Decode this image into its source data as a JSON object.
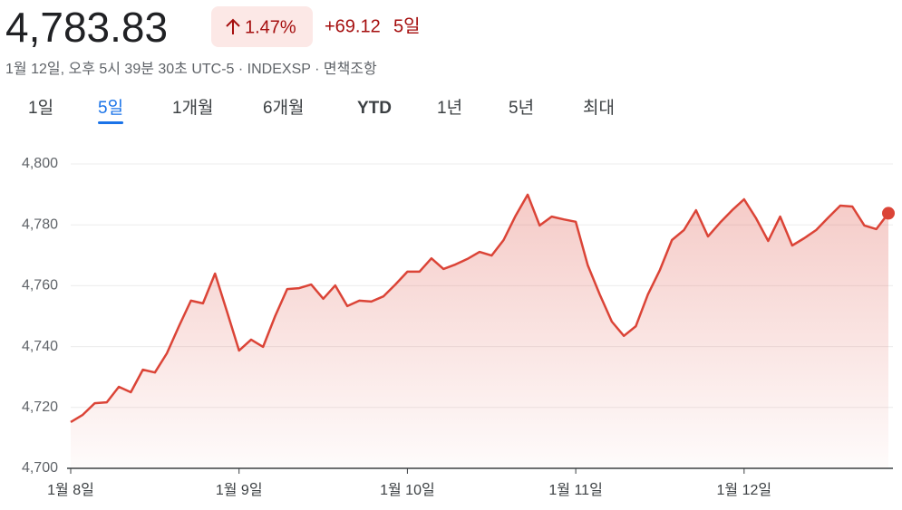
{
  "header": {
    "price": "4,783.83",
    "change_percent": "1.47%",
    "change": "+69.12",
    "period": "5일",
    "subtitle": "1월 12일, 오후 5시 39분 30초 UTC-5 · INDEXSP · 면책조항"
  },
  "tabs": {
    "items": [
      "1일",
      "5일",
      "1개월",
      "6개월",
      "YTD",
      "1년",
      "5년",
      "최대"
    ],
    "selected": 1
  },
  "chart_data": {
    "type": "area",
    "color": "#db4437",
    "categories": [
      "1월 8일",
      null,
      null,
      null,
      null,
      null,
      null,
      null,
      null,
      null,
      null,
      null,
      null,
      null,
      "1월 9일",
      null,
      null,
      null,
      null,
      null,
      null,
      null,
      null,
      null,
      null,
      null,
      null,
      null,
      "1월 10일",
      null,
      null,
      null,
      null,
      null,
      null,
      null,
      null,
      null,
      null,
      null,
      null,
      null,
      "1월 11일",
      null,
      null,
      null,
      null,
      null,
      null,
      null,
      null,
      null,
      null,
      null,
      null,
      null,
      "1월 12일",
      null,
      null,
      null,
      null,
      null,
      null,
      null,
      null,
      null,
      null,
      null,
      null
    ],
    "values": [
      4715.2,
      4717.6,
      4721.4,
      4721.7,
      4726.8,
      4725.0,
      4732.4,
      4731.5,
      4737.8,
      4746.7,
      4755.1,
      4754.2,
      4764.0,
      4751.5,
      4738.7,
      4742.3,
      4739.9,
      4750.0,
      4758.9,
      4759.2,
      4760.4,
      4755.7,
      4760.1,
      4753.3,
      4755.1,
      4754.8,
      4756.5,
      4760.4,
      4764.6,
      4764.6,
      4769.0,
      4765.5,
      4767.0,
      4768.8,
      4771.1,
      4769.9,
      4775.0,
      4783.0,
      4789.9,
      4779.8,
      4782.7,
      4781.8,
      4781.0,
      4766.7,
      4757.1,
      4748.2,
      4743.5,
      4746.7,
      4757.1,
      4765.2,
      4775.0,
      4778.3,
      4784.8,
      4776.2,
      4780.7,
      4784.8,
      4788.4,
      4782.1,
      4774.7,
      4782.7,
      4773.2,
      4775.6,
      4778.3,
      4782.4,
      4786.3,
      4786.0,
      4779.8,
      4778.6,
      4783.8
    ],
    "ylim": [
      4700,
      4810
    ],
    "yticks": [
      {
        "value": 4700,
        "label": "4,700"
      },
      {
        "value": 4720,
        "label": "4,720"
      },
      {
        "value": 4740,
        "label": "4,740"
      },
      {
        "value": 4760,
        "label": "4,760"
      },
      {
        "value": 4780,
        "label": "4,780"
      },
      {
        "value": 4800,
        "label": "4,800"
      }
    ],
    "grid": true
  }
}
